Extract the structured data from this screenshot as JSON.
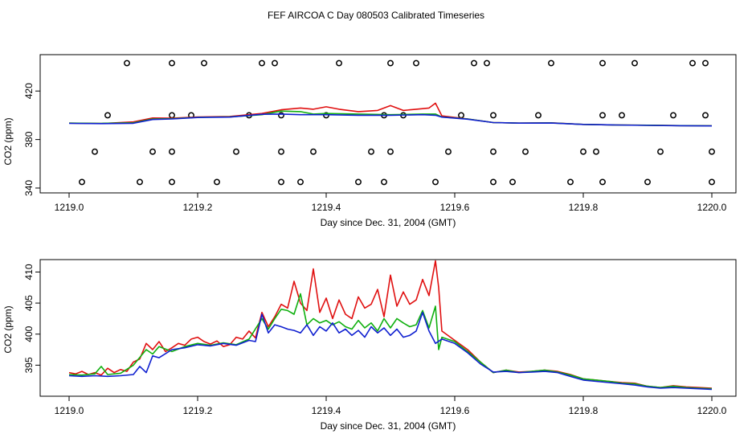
{
  "title": "FEF AIRCOA C  Day 080503  Calibrated Timeseries",
  "colors": {
    "red": "#e01010",
    "green": "#10b010",
    "blue": "#1020d0",
    "axis": "#000000"
  },
  "chart_data": [
    {
      "type": "line",
      "panel": "top",
      "xlabel": "Day since Dec. 31, 2004 (GMT)",
      "ylabel": "CO2 (ppm)",
      "xlim": [
        1219.0,
        1220.0
      ],
      "ylim": [
        336,
        450
      ],
      "xticks": [
        1219.0,
        1219.2,
        1219.4,
        1219.6,
        1219.8,
        1220.0
      ],
      "xtick_labels": [
        "1219.0",
        "1219.2",
        "1219.4",
        "1219.6",
        "1219.8",
        "1220.0"
      ],
      "yticks": [
        340,
        380,
        420
      ],
      "ytick_labels": [
        "340",
        "380",
        "420"
      ],
      "series": [
        {
          "name": "red",
          "color": "#e01010",
          "x": [
            1219.0,
            1219.05,
            1219.1,
            1219.13,
            1219.16,
            1219.2,
            1219.25,
            1219.3,
            1219.33,
            1219.36,
            1219.38,
            1219.4,
            1219.42,
            1219.45,
            1219.48,
            1219.5,
            1219.52,
            1219.54,
            1219.56,
            1219.57,
            1219.58,
            1219.62,
            1219.66,
            1219.7,
            1219.75,
            1219.8,
            1219.85,
            1219.9,
            1219.95,
            1220.0
          ],
          "y": [
            393.5,
            393.2,
            394.5,
            397.8,
            397.6,
            398.6,
            399.0,
            401.5,
            404.5,
            406,
            405,
            407,
            405,
            403,
            404,
            408,
            404,
            405,
            406,
            410,
            399.5,
            397,
            394,
            393.5,
            393.8,
            392.5,
            392,
            391.8,
            391.5,
            391.3
          ]
        },
        {
          "name": "green",
          "color": "#10b010",
          "x": [
            1219.0,
            1219.05,
            1219.1,
            1219.13,
            1219.16,
            1219.2,
            1219.25,
            1219.3,
            1219.33,
            1219.36,
            1219.38,
            1219.4,
            1219.45,
            1219.5,
            1219.55,
            1219.57,
            1219.58,
            1219.62,
            1219.66,
            1219.7,
            1219.75,
            1219.8,
            1219.85,
            1219.9,
            1219.95,
            1220.0
          ],
          "y": [
            393.5,
            393.3,
            393.8,
            397,
            397.2,
            398.3,
            398.7,
            400.5,
            403.5,
            403,
            401,
            401.5,
            401,
            400.5,
            401,
            401,
            398.6,
            397,
            394,
            393.5,
            393.7,
            392.5,
            392,
            391.8,
            391.5,
            391.3
          ]
        },
        {
          "name": "blue",
          "color": "#1020d0",
          "x": [
            1219.0,
            1219.05,
            1219.1,
            1219.13,
            1219.16,
            1219.2,
            1219.25,
            1219.3,
            1219.33,
            1219.36,
            1219.4,
            1219.45,
            1219.5,
            1219.55,
            1219.57,
            1219.58,
            1219.62,
            1219.66,
            1219.7,
            1219.75,
            1219.8,
            1219.85,
            1219.9,
            1219.95,
            1220.0
          ],
          "y": [
            393.3,
            393.1,
            393.4,
            396.5,
            397,
            398.2,
            398.5,
            400.8,
            401,
            400.5,
            400.5,
            400,
            400,
            400.5,
            400,
            398.5,
            396.8,
            394,
            393.5,
            393.6,
            392.5,
            392,
            391.7,
            391.4,
            391.2
          ]
        }
      ],
      "markers": {
        "style": "open-circle",
        "x": [
          1219.09,
          1219.16,
          1219.21,
          1219.3,
          1219.32,
          1219.42,
          1219.5,
          1219.54,
          1219.63,
          1219.65,
          1219.75,
          1219.83,
          1219.88,
          1219.97,
          1219.99,
          1219.06,
          1219.16,
          1219.19,
          1219.28,
          1219.33,
          1219.4,
          1219.49,
          1219.52,
          1219.61,
          1219.66,
          1219.73,
          1219.83,
          1219.86,
          1219.94,
          1219.99,
          1219.04,
          1219.13,
          1219.16,
          1219.26,
          1219.33,
          1219.38,
          1219.47,
          1219.5,
          1219.59,
          1219.66,
          1219.71,
          1219.8,
          1219.82,
          1219.92,
          1220.0,
          1219.02,
          1219.11,
          1219.16,
          1219.23,
          1219.33,
          1219.36,
          1219.45,
          1219.49,
          1219.57,
          1219.66,
          1219.69,
          1219.78,
          1219.83,
          1219.9,
          1220.0
        ],
        "y": [
          443,
          443,
          443,
          443,
          443,
          443,
          443,
          443,
          443,
          443,
          443,
          443,
          443,
          443,
          443,
          400,
          400,
          400,
          400,
          400,
          400,
          400,
          400,
          400,
          400,
          400,
          400,
          400,
          400,
          400,
          370,
          370,
          370,
          370,
          370,
          370,
          370,
          370,
          370,
          370,
          370,
          370,
          370,
          370,
          370,
          345,
          345,
          345,
          345,
          345,
          345,
          345,
          345,
          345,
          345,
          345,
          345,
          345,
          345,
          345
        ]
      }
    },
    {
      "type": "line",
      "panel": "bottom",
      "xlabel": "Day since Dec. 31, 2004 (GMT)",
      "ylabel": "CO2 (ppm)",
      "xlim": [
        1219.0,
        1220.0
      ],
      "ylim": [
        390,
        412
      ],
      "xticks": [
        1219.0,
        1219.2,
        1219.4,
        1219.6,
        1219.8,
        1220.0
      ],
      "xtick_labels": [
        "1219.0",
        "1219.2",
        "1219.4",
        "1219.6",
        "1219.8",
        "1220.0"
      ],
      "yticks": [
        395,
        400,
        405,
        410
      ],
      "ytick_labels": [
        "395",
        "400",
        "405",
        "410"
      ],
      "series": [
        {
          "name": "red",
          "color": "#e01010",
          "x": [
            1219.0,
            1219.01,
            1219.02,
            1219.03,
            1219.04,
            1219.05,
            1219.06,
            1219.07,
            1219.08,
            1219.09,
            1219.1,
            1219.11,
            1219.12,
            1219.13,
            1219.14,
            1219.15,
            1219.16,
            1219.17,
            1219.18,
            1219.19,
            1219.2,
            1219.21,
            1219.22,
            1219.23,
            1219.24,
            1219.25,
            1219.26,
            1219.27,
            1219.28,
            1219.29,
            1219.3,
            1219.31,
            1219.32,
            1219.33,
            1219.34,
            1219.35,
            1219.36,
            1219.37,
            1219.38,
            1219.39,
            1219.4,
            1219.41,
            1219.42,
            1219.43,
            1219.44,
            1219.45,
            1219.46,
            1219.47,
            1219.48,
            1219.49,
            1219.5,
            1219.51,
            1219.52,
            1219.53,
            1219.54,
            1219.55,
            1219.56,
            1219.57,
            1219.575,
            1219.58,
            1219.6,
            1219.62,
            1219.64,
            1219.66,
            1219.68,
            1219.7,
            1219.72,
            1219.74,
            1219.76,
            1219.78,
            1219.8,
            1219.82,
            1219.84,
            1219.86,
            1219.88,
            1219.9,
            1219.92,
            1219.94,
            1219.96,
            1219.98,
            1220.0
          ],
          "y": [
            393.8,
            393.6,
            394,
            393.5,
            393.8,
            393.4,
            394.5,
            393.8,
            394.3,
            394,
            395.5,
            396,
            398.5,
            397.5,
            398.8,
            397.2,
            397.8,
            398.5,
            398.2,
            399.2,
            399.5,
            398.8,
            398.4,
            398.9,
            398,
            398.3,
            399.5,
            399.2,
            400.5,
            399.4,
            403.5,
            401.2,
            402.8,
            404.8,
            404.2,
            408.5,
            405,
            403.8,
            410.5,
            403.5,
            405.8,
            402.5,
            405.5,
            403.2,
            402.5,
            406,
            404.2,
            404.8,
            407.2,
            402.8,
            409.5,
            404.5,
            406.8,
            404.8,
            405.5,
            408.8,
            406.2,
            411.8,
            407.5,
            400.5,
            399,
            397.5,
            395.5,
            393.8,
            394.2,
            393.9,
            394,
            394.2,
            394,
            393.5,
            392.8,
            392.6,
            392.4,
            392.2,
            392.1,
            391.6,
            391.4,
            391.7,
            391.5,
            391.4,
            391.3
          ]
        },
        {
          "name": "green",
          "color": "#10b010",
          "x": [
            1219.0,
            1219.02,
            1219.04,
            1219.05,
            1219.06,
            1219.08,
            1219.1,
            1219.12,
            1219.13,
            1219.14,
            1219.16,
            1219.18,
            1219.2,
            1219.22,
            1219.24,
            1219.26,
            1219.28,
            1219.3,
            1219.31,
            1219.32,
            1219.33,
            1219.34,
            1219.35,
            1219.36,
            1219.37,
            1219.38,
            1219.39,
            1219.4,
            1219.41,
            1219.42,
            1219.43,
            1219.44,
            1219.45,
            1219.46,
            1219.47,
            1219.48,
            1219.49,
            1219.5,
            1219.51,
            1219.52,
            1219.53,
            1219.54,
            1219.55,
            1219.56,
            1219.57,
            1219.575,
            1219.58,
            1219.6,
            1219.62,
            1219.64,
            1219.66,
            1219.68,
            1219.7,
            1219.72,
            1219.74,
            1219.76,
            1219.78,
            1219.8,
            1219.82,
            1219.84,
            1219.86,
            1219.88,
            1219.9,
            1219.92,
            1219.94,
            1219.96,
            1219.98,
            1220.0
          ],
          "y": [
            393.5,
            393.4,
            393.6,
            394.8,
            393.5,
            393.7,
            395,
            397.5,
            396.8,
            398,
            397.2,
            398,
            398.5,
            398.2,
            398.6,
            398.3,
            399.2,
            402.5,
            400.8,
            402.5,
            404,
            403.8,
            403.2,
            406.5,
            401.5,
            402.5,
            401.8,
            402.2,
            401.5,
            402,
            401.2,
            400.8,
            402.2,
            401,
            401.8,
            400.5,
            402.5,
            401,
            402.5,
            401.8,
            401.2,
            401.5,
            403.8,
            401,
            404.5,
            397.5,
            399.5,
            398.8,
            397.2,
            395.5,
            393.8,
            394.2,
            393.8,
            394,
            394.2,
            393.9,
            393.4,
            392.8,
            392.6,
            392.4,
            392.1,
            392,
            391.6,
            391.4,
            391.6,
            391.4,
            391.3,
            391.2
          ]
        },
        {
          "name": "blue",
          "color": "#1020d0",
          "x": [
            1219.0,
            1219.02,
            1219.04,
            1219.06,
            1219.08,
            1219.1,
            1219.11,
            1219.12,
            1219.13,
            1219.14,
            1219.16,
            1219.18,
            1219.2,
            1219.22,
            1219.24,
            1219.26,
            1219.28,
            1219.29,
            1219.3,
            1219.31,
            1219.32,
            1219.33,
            1219.34,
            1219.35,
            1219.36,
            1219.37,
            1219.38,
            1219.39,
            1219.4,
            1219.41,
            1219.42,
            1219.43,
            1219.44,
            1219.45,
            1219.46,
            1219.47,
            1219.48,
            1219.49,
            1219.5,
            1219.51,
            1219.52,
            1219.53,
            1219.54,
            1219.55,
            1219.56,
            1219.57,
            1219.58,
            1219.6,
            1219.62,
            1219.64,
            1219.66,
            1219.68,
            1219.7,
            1219.72,
            1219.74,
            1219.76,
            1219.78,
            1219.8,
            1219.82,
            1219.84,
            1219.86,
            1219.88,
            1219.9,
            1219.92,
            1219.94,
            1219.96,
            1219.98,
            1220.0
          ],
          "y": [
            393.3,
            393.2,
            393.3,
            393.2,
            393.3,
            393.5,
            394.8,
            393.8,
            396.5,
            396.2,
            397.5,
            397.8,
            398.3,
            398.1,
            398.5,
            398.2,
            399,
            398.8,
            403.2,
            400.2,
            401.5,
            401.2,
            400.8,
            400.6,
            400.2,
            401.5,
            399.8,
            401.2,
            400.5,
            401.8,
            400.2,
            400.8,
            399.8,
            400.6,
            399.5,
            401.2,
            400.2,
            401,
            399.8,
            400.8,
            399.5,
            399.8,
            400.5,
            403.5,
            400.5,
            398.5,
            399.2,
            398.5,
            397,
            395.2,
            393.9,
            394,
            393.8,
            393.9,
            394,
            393.8,
            393.2,
            392.6,
            392.4,
            392.2,
            392,
            391.8,
            391.5,
            391.3,
            391.4,
            391.3,
            391.2,
            391.1
          ]
        }
      ]
    }
  ]
}
